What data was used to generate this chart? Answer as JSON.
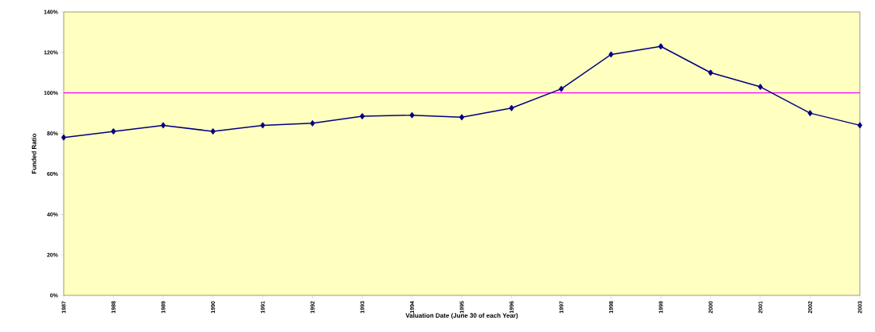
{
  "chart_data": {
    "type": "line",
    "xlabel": "Valuation Date (June 30 of each Year)",
    "ylabel": "Funded Ratio",
    "categories": [
      "1987",
      "1988",
      "1989",
      "1990",
      "1991",
      "1992",
      "1993",
      "1994",
      "1995",
      "1996",
      "1997",
      "1998",
      "1999",
      "2000",
      "2001",
      "2002",
      "2003"
    ],
    "series": [
      {
        "color": "#000080",
        "values": [
          78,
          81,
          84,
          81,
          84,
          85,
          88.5,
          89,
          88,
          92.5,
          102,
          119,
          123,
          110,
          103,
          90,
          84
        ]
      }
    ],
    "ylim": [
      0,
      140
    ],
    "yticks": [
      {
        "value": 0,
        "label": "0%"
      },
      {
        "value": 20,
        "label": "20%"
      },
      {
        "value": 40,
        "label": "40%"
      },
      {
        "value": 60,
        "label": "60%"
      },
      {
        "value": 80,
        "label": "80%"
      },
      {
        "value": 100,
        "label": "100%"
      },
      {
        "value": 120,
        "label": "120%"
      },
      {
        "value": 140,
        "label": "140%"
      }
    ],
    "ref_lines": [
      {
        "axis": "y",
        "value": 100,
        "color": "#ff00ff"
      }
    ],
    "marker": "diamond",
    "line_style": "solid",
    "grid": false
  }
}
